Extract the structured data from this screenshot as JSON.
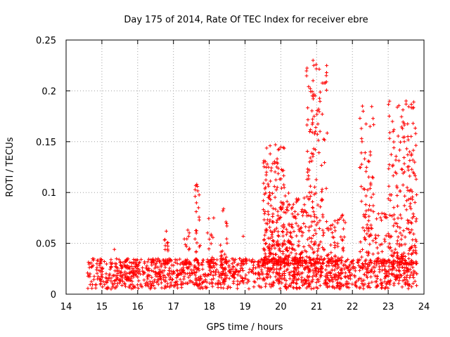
{
  "chart_data": {
    "type": "scatter",
    "title": "Day 175 of 2014, Rate Of TEC Index for receiver ebre",
    "xlabel": "GPS time / hours",
    "ylabel": "ROTI / TECUs",
    "xlim": [
      14,
      24
    ],
    "ylim": [
      0,
      0.25
    ],
    "xticks": [
      "14",
      "15",
      "16",
      "17",
      "18",
      "19",
      "20",
      "21",
      "22",
      "23",
      "24"
    ],
    "yticks": [
      "0",
      "0.05",
      "0.1",
      "0.15",
      "0.2",
      "0.25"
    ],
    "grid": true,
    "marker": "+",
    "series_color": "#ff0000",
    "background_band": {
      "x_start": 14.6,
      "x_end": 23.8,
      "y_min": 0.005,
      "y_max": 0.035
    },
    "highlight_points": [
      {
        "x": 20.9,
        "y": 0.23
      },
      {
        "x": 20.92,
        "y": 0.225
      },
      {
        "x": 20.9,
        "y": 0.21
      },
      {
        "x": 20.88,
        "y": 0.195
      },
      {
        "x": 20.93,
        "y": 0.175
      },
      {
        "x": 20.88,
        "y": 0.167
      },
      {
        "x": 20.92,
        "y": 0.143
      },
      {
        "x": 22.28,
        "y": 0.185
      },
      {
        "x": 22.3,
        "y": 0.18
      },
      {
        "x": 22.25,
        "y": 0.163
      },
      {
        "x": 22.27,
        "y": 0.15
      },
      {
        "x": 22.25,
        "y": 0.139
      },
      {
        "x": 23.5,
        "y": 0.19
      },
      {
        "x": 23.5,
        "y": 0.187
      },
      {
        "x": 23.55,
        "y": 0.155
      },
      {
        "x": 23.45,
        "y": 0.15
      },
      {
        "x": 23.6,
        "y": 0.14
      },
      {
        "x": 17.65,
        "y": 0.108
      },
      {
        "x": 17.67,
        "y": 0.106
      },
      {
        "x": 17.7,
        "y": 0.085
      },
      {
        "x": 18.4,
        "y": 0.084
      },
      {
        "x": 18.38,
        "y": 0.082
      },
      {
        "x": 19.7,
        "y": 0.146
      },
      {
        "x": 19.85,
        "y": 0.147
      },
      {
        "x": 19.6,
        "y": 0.12
      },
      {
        "x": 20.75,
        "y": 0.123
      },
      {
        "x": 20.8,
        "y": 0.1
      },
      {
        "x": 22.5,
        "y": 0.14
      },
      {
        "x": 23.2,
        "y": 0.12
      },
      {
        "x": 23.7,
        "y": 0.12
      },
      {
        "x": 16.8,
        "y": 0.062
      },
      {
        "x": 17.4,
        "y": 0.063
      },
      {
        "x": 15.35,
        "y": 0.044
      },
      {
        "x": 18.95,
        "y": 0.057
      }
    ],
    "clusters": [
      {
        "x_min": 16.75,
        "x_max": 16.85,
        "y_min": 0.03,
        "y_max": 0.063,
        "count": 18
      },
      {
        "x_min": 17.3,
        "x_max": 17.45,
        "y_min": 0.03,
        "y_max": 0.063,
        "count": 18
      },
      {
        "x_min": 17.6,
        "x_max": 17.75,
        "y_min": 0.03,
        "y_max": 0.108,
        "count": 22
      },
      {
        "x_min": 17.95,
        "x_max": 18.15,
        "y_min": 0.03,
        "y_max": 0.08,
        "count": 20
      },
      {
        "x_min": 18.3,
        "x_max": 18.5,
        "y_min": 0.03,
        "y_max": 0.084,
        "count": 20
      },
      {
        "x_min": 19.5,
        "x_max": 20.1,
        "y_min": 0.03,
        "y_max": 0.147,
        "count": 220
      },
      {
        "x_min": 20.1,
        "x_max": 20.7,
        "y_min": 0.03,
        "y_max": 0.1,
        "count": 140
      },
      {
        "x_min": 20.7,
        "x_max": 21.3,
        "y_min": 0.03,
        "y_max": 0.23,
        "count": 160
      },
      {
        "x_min": 21.3,
        "x_max": 21.8,
        "y_min": 0.03,
        "y_max": 0.08,
        "count": 60
      },
      {
        "x_min": 22.2,
        "x_max": 22.6,
        "y_min": 0.03,
        "y_max": 0.185,
        "count": 80
      },
      {
        "x_min": 22.6,
        "x_max": 23.0,
        "y_min": 0.03,
        "y_max": 0.08,
        "count": 40
      },
      {
        "x_min": 23.0,
        "x_max": 23.8,
        "y_min": 0.03,
        "y_max": 0.19,
        "count": 220
      }
    ]
  }
}
